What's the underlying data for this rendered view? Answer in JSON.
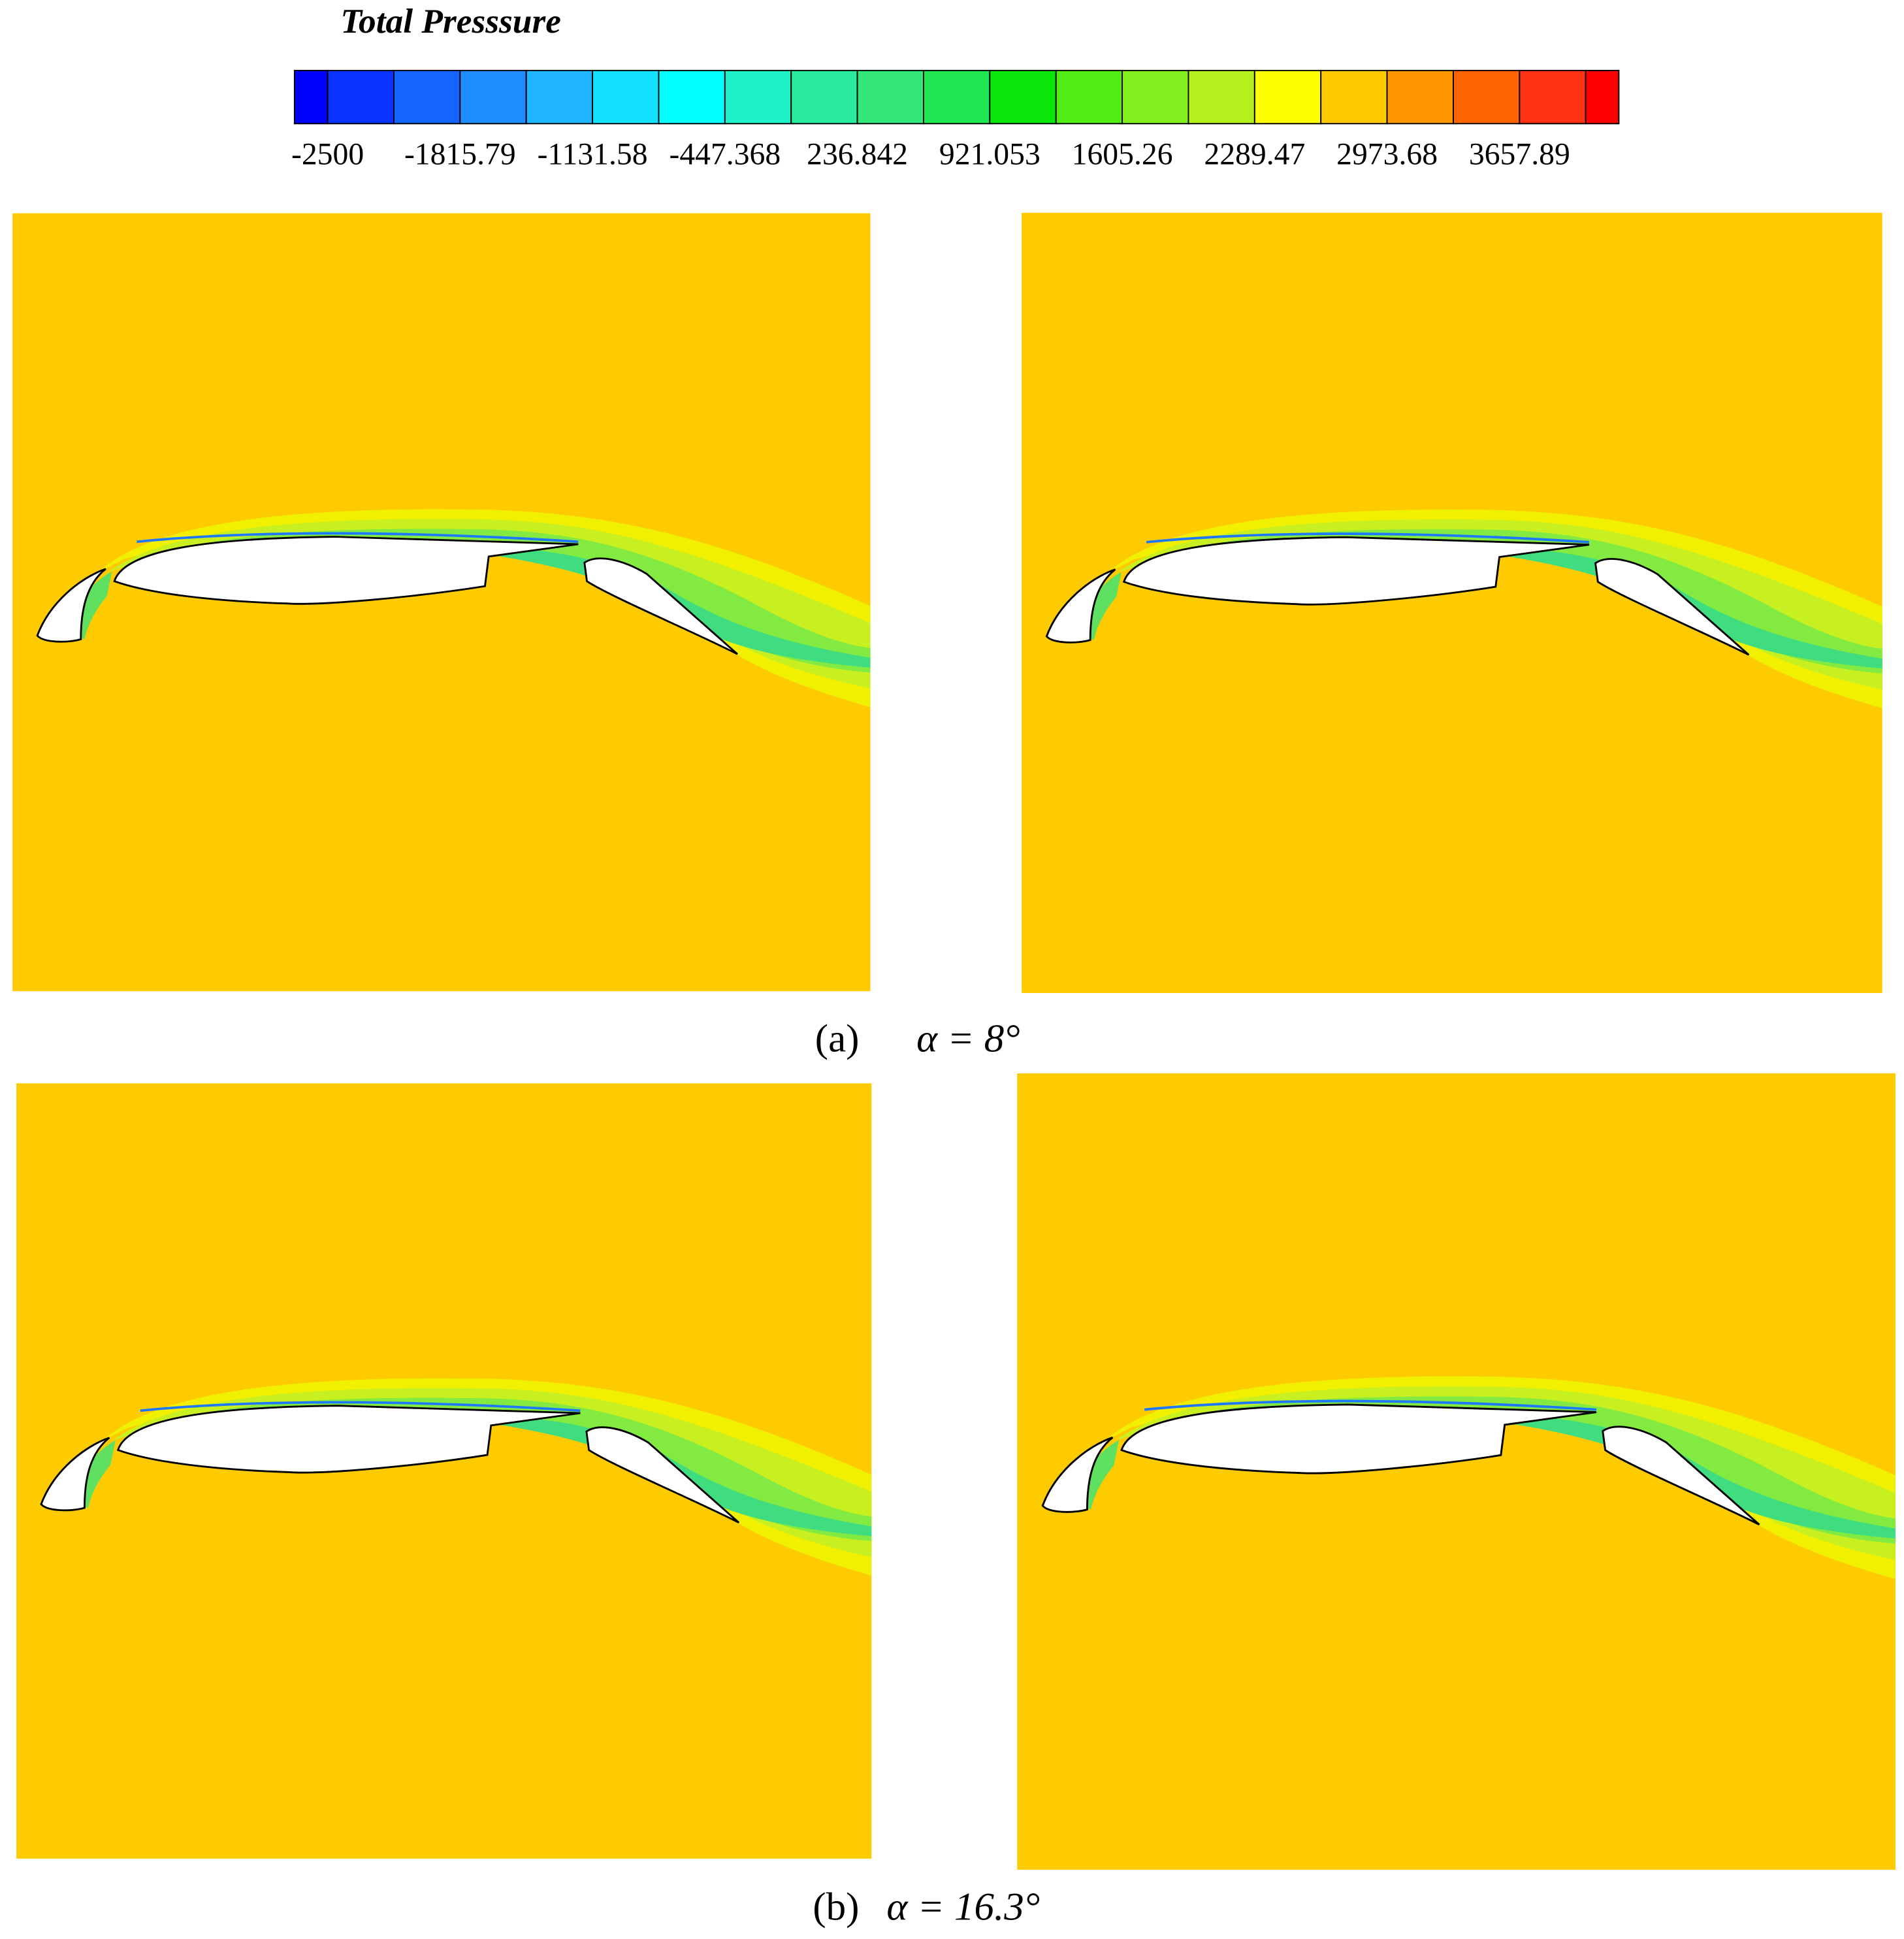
{
  "colorbar": {
    "title": "Total Presssure",
    "ticks": [
      -2500,
      -1815.79,
      -1131.58,
      -447.368,
      236.842,
      921.053,
      1605.26,
      2289.47,
      2973.68,
      3657.89
    ],
    "colors": [
      "#0000ff",
      "#0a32ff",
      "#1464ff",
      "#1e8cff",
      "#1eb4ff",
      "#14e0ff",
      "#00ffff",
      "#1ef2c8",
      "#28eaa0",
      "#32e678",
      "#1ee650",
      "#0ae60a",
      "#50ec14",
      "#82f01e",
      "#b4f01e",
      "#ffff00",
      "#ffc800",
      "#ff9600",
      "#ff6400",
      "#ff3214",
      "#ff0000"
    ]
  },
  "captions": [
    {
      "label": "(a)",
      "text": "α = 8°"
    },
    {
      "label": "(b)",
      "text": "α = 16.3°"
    }
  ]
}
